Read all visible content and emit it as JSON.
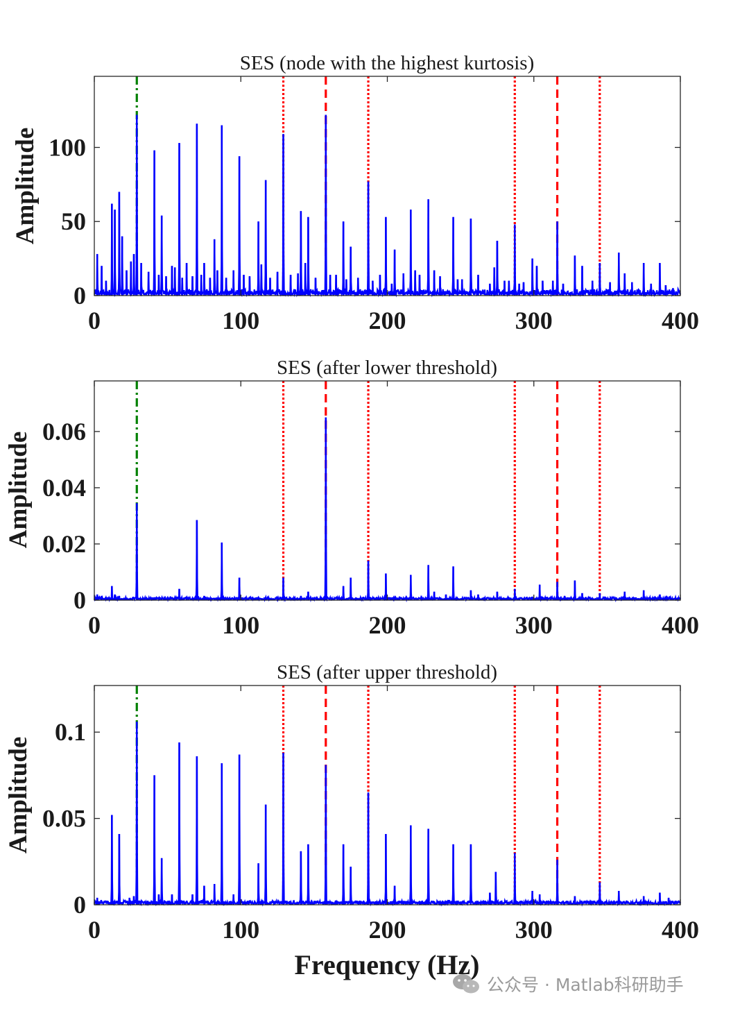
{
  "figure": {
    "xlabel": "Frequency (Hz)",
    "watermark": "公众号 · Matlab科研助手"
  },
  "colors": {
    "spectrum": "#0000ff",
    "fundamental_line": "#008000",
    "harmonic_line": "#ff0000",
    "sideband_line": "#ff0000",
    "axis": "#262626",
    "text": "#1a1a1a",
    "watermark": "#9a9a9a"
  },
  "chart_data": [
    {
      "type": "line",
      "title": "SES (node with the highest kurtosis)",
      "xlabel": "",
      "ylabel": "Amplitude",
      "xlim": [
        0,
        400
      ],
      "ylim": [
        0,
        148
      ],
      "xticks": [
        0,
        100,
        200,
        300,
        400
      ],
      "yticks": [
        0,
        50,
        100
      ],
      "ytick_labels": [
        "0",
        "50",
        "100"
      ],
      "grid": false,
      "noise_floor": 3.5,
      "baseline": 0.8,
      "reference_lines": [
        {
          "x": 29,
          "style": "dashdot",
          "color": "green",
          "label": "fundamental"
        },
        {
          "x": 129,
          "style": "dotted",
          "color": "red",
          "label": "sideband"
        },
        {
          "x": 158,
          "style": "dashed",
          "color": "red",
          "label": "harmonic"
        },
        {
          "x": 187,
          "style": "dotted",
          "color": "red",
          "label": "sideband"
        },
        {
          "x": 287,
          "style": "dotted",
          "color": "red",
          "label": "sideband"
        },
        {
          "x": 316,
          "style": "dashed",
          "color": "red",
          "label": "harmonic"
        },
        {
          "x": 345,
          "style": "dotted",
          "color": "red",
          "label": "sideband"
        }
      ],
      "peaks": [
        [
          2,
          28
        ],
        [
          5,
          20
        ],
        [
          8,
          10
        ],
        [
          12,
          62
        ],
        [
          14,
          58
        ],
        [
          17,
          70
        ],
        [
          19,
          40
        ],
        [
          22,
          17
        ],
        [
          25,
          23
        ],
        [
          27,
          28
        ],
        [
          29,
          122
        ],
        [
          32,
          22
        ],
        [
          37,
          16
        ],
        [
          41,
          98
        ],
        [
          44,
          14
        ],
        [
          46,
          54
        ],
        [
          49,
          13
        ],
        [
          53,
          20
        ],
        [
          55,
          19
        ],
        [
          58,
          103
        ],
        [
          60,
          12
        ],
        [
          63,
          22
        ],
        [
          67,
          13
        ],
        [
          70,
          116
        ],
        [
          73,
          14
        ],
        [
          75,
          22
        ],
        [
          79,
          12
        ],
        [
          82,
          38
        ],
        [
          84,
          17
        ],
        [
          87,
          115
        ],
        [
          90,
          12
        ],
        [
          95,
          17
        ],
        [
          99,
          94
        ],
        [
          102,
          14
        ],
        [
          106,
          13
        ],
        [
          112,
          50
        ],
        [
          114,
          21
        ],
        [
          117,
          78
        ],
        [
          120,
          12
        ],
        [
          125,
          16
        ],
        [
          129,
          109
        ],
        [
          134,
          14
        ],
        [
          139,
          15
        ],
        [
          141,
          57
        ],
        [
          144,
          22
        ],
        [
          146,
          53
        ],
        [
          151,
          12
        ],
        [
          158,
          122
        ],
        [
          161,
          14
        ],
        [
          165,
          14
        ],
        [
          170,
          50
        ],
        [
          172,
          11
        ],
        [
          175,
          33
        ],
        [
          180,
          12
        ],
        [
          187,
          77
        ],
        [
          190,
          10
        ],
        [
          195,
          14
        ],
        [
          199,
          53
        ],
        [
          203,
          8
        ],
        [
          205,
          31
        ],
        [
          211,
          15
        ],
        [
          216,
          58
        ],
        [
          219,
          17
        ],
        [
          222,
          14
        ],
        [
          228,
          65
        ],
        [
          232,
          17
        ],
        [
          236,
          13
        ],
        [
          245,
          53
        ],
        [
          248,
          11
        ],
        [
          251,
          11
        ],
        [
          257,
          52
        ],
        [
          262,
          14
        ],
        [
          270,
          8
        ],
        [
          273,
          19
        ],
        [
          275,
          37
        ],
        [
          280,
          10
        ],
        [
          283,
          10
        ],
        [
          287,
          48
        ],
        [
          290,
          8
        ],
        [
          293,
          9
        ],
        [
          299,
          25
        ],
        [
          302,
          20
        ],
        [
          306,
          10
        ],
        [
          313,
          10
        ],
        [
          316,
          50
        ],
        [
          320,
          8
        ],
        [
          328,
          27
        ],
        [
          333,
          20
        ],
        [
          340,
          10
        ],
        [
          345,
          22
        ],
        [
          352,
          9
        ],
        [
          358,
          29
        ],
        [
          362,
          15
        ],
        [
          367,
          9
        ],
        [
          375,
          22
        ],
        [
          380,
          8
        ],
        [
          386,
          22
        ],
        [
          390,
          7
        ],
        [
          395,
          5
        ]
      ]
    },
    {
      "type": "line",
      "title": "SES (after lower threshold)",
      "xlabel": "",
      "ylabel": "Amplitude",
      "xlim": [
        0,
        400
      ],
      "ylim": [
        0,
        0.078
      ],
      "xticks": [
        0,
        100,
        200,
        300,
        400
      ],
      "yticks": [
        0,
        0.02,
        0.04,
        0.06
      ],
      "ytick_labels": [
        "0",
        "0.02",
        "0.04",
        "0.06"
      ],
      "grid": false,
      "noise_floor": 0.0007,
      "baseline": 0.0003,
      "reference_lines": [
        {
          "x": 29,
          "style": "dashdot",
          "color": "green",
          "label": "fundamental"
        },
        {
          "x": 129,
          "style": "dotted",
          "color": "red",
          "label": "sideband"
        },
        {
          "x": 158,
          "style": "dashed",
          "color": "red",
          "label": "harmonic"
        },
        {
          "x": 187,
          "style": "dotted",
          "color": "red",
          "label": "sideband"
        },
        {
          "x": 287,
          "style": "dotted",
          "color": "red",
          "label": "sideband"
        },
        {
          "x": 316,
          "style": "dashed",
          "color": "red",
          "label": "harmonic"
        },
        {
          "x": 345,
          "style": "dotted",
          "color": "red",
          "label": "sideband"
        }
      ],
      "peaks": [
        [
          2,
          0.002
        ],
        [
          5,
          0.0015
        ],
        [
          12,
          0.005
        ],
        [
          14,
          0.002
        ],
        [
          17,
          0.0015
        ],
        [
          29,
          0.0345
        ],
        [
          41,
          0.001
        ],
        [
          58,
          0.004
        ],
        [
          70,
          0.0285
        ],
        [
          75,
          0.0015
        ],
        [
          87,
          0.0205
        ],
        [
          99,
          0.008
        ],
        [
          112,
          0.001
        ],
        [
          117,
          0.001
        ],
        [
          129,
          0.008
        ],
        [
          141,
          0.0015
        ],
        [
          146,
          0.003
        ],
        [
          158,
          0.065
        ],
        [
          170,
          0.005
        ],
        [
          175,
          0.008
        ],
        [
          187,
          0.014
        ],
        [
          199,
          0.0095
        ],
        [
          216,
          0.009
        ],
        [
          228,
          0.0125
        ],
        [
          232,
          0.003
        ],
        [
          240,
          0.002
        ],
        [
          245,
          0.012
        ],
        [
          257,
          0.0035
        ],
        [
          262,
          0.002
        ],
        [
          275,
          0.003
        ],
        [
          287,
          0.004
        ],
        [
          299,
          0.001
        ],
        [
          304,
          0.0055
        ],
        [
          316,
          0.0065
        ],
        [
          321,
          0.0015
        ],
        [
          328,
          0.007
        ],
        [
          333,
          0.0025
        ],
        [
          345,
          0.0025
        ],
        [
          362,
          0.003
        ],
        [
          375,
          0.0035
        ],
        [
          386,
          0.002
        ]
      ]
    },
    {
      "type": "line",
      "title": "SES (after upper threshold)",
      "xlabel": "Frequency (Hz)",
      "ylabel": "Amplitude",
      "xlim": [
        0,
        400
      ],
      "ylim": [
        0,
        0.127
      ],
      "xticks": [
        0,
        100,
        200,
        300,
        400
      ],
      "yticks": [
        0,
        0.05,
        0.1
      ],
      "ytick_labels": [
        "0",
        "0.05",
        "0.1"
      ],
      "grid": false,
      "noise_floor": 0.0018,
      "baseline": 0.0006,
      "reference_lines": [
        {
          "x": 29,
          "style": "dashdot",
          "color": "green",
          "label": "fundamental"
        },
        {
          "x": 129,
          "style": "dotted",
          "color": "red",
          "label": "sideband"
        },
        {
          "x": 158,
          "style": "dashed",
          "color": "red",
          "label": "harmonic"
        },
        {
          "x": 187,
          "style": "dotted",
          "color": "red",
          "label": "sideband"
        },
        {
          "x": 287,
          "style": "dotted",
          "color": "red",
          "label": "sideband"
        },
        {
          "x": 316,
          "style": "dashed",
          "color": "red",
          "label": "harmonic"
        },
        {
          "x": 345,
          "style": "dotted",
          "color": "red",
          "label": "sideband"
        }
      ],
      "peaks": [
        [
          2,
          0.004
        ],
        [
          12,
          0.052
        ],
        [
          17,
          0.041
        ],
        [
          24,
          0.004
        ],
        [
          27,
          0.005
        ],
        [
          29,
          0.106
        ],
        [
          41,
          0.075
        ],
        [
          44,
          0.006
        ],
        [
          46,
          0.027
        ],
        [
          53,
          0.006
        ],
        [
          58,
          0.094
        ],
        [
          67,
          0.006
        ],
        [
          70,
          0.086
        ],
        [
          75,
          0.011
        ],
        [
          82,
          0.012
        ],
        [
          87,
          0.082
        ],
        [
          95,
          0.006
        ],
        [
          99,
          0.087
        ],
        [
          112,
          0.024
        ],
        [
          117,
          0.058
        ],
        [
          129,
          0.088
        ],
        [
          141,
          0.031
        ],
        [
          146,
          0.035
        ],
        [
          158,
          0.081
        ],
        [
          170,
          0.035
        ],
        [
          175,
          0.022
        ],
        [
          187,
          0.065
        ],
        [
          199,
          0.041
        ],
        [
          205,
          0.011
        ],
        [
          216,
          0.046
        ],
        [
          228,
          0.044
        ],
        [
          245,
          0.035
        ],
        [
          257,
          0.035
        ],
        [
          270,
          0.007
        ],
        [
          274,
          0.019
        ],
        [
          287,
          0.03
        ],
        [
          299,
          0.008
        ],
        [
          304,
          0.006
        ],
        [
          316,
          0.026
        ],
        [
          328,
          0.005
        ],
        [
          345,
          0.013
        ],
        [
          358,
          0.008
        ],
        [
          375,
          0.005
        ],
        [
          386,
          0.007
        ],
        [
          392,
          0.004
        ]
      ]
    }
  ]
}
